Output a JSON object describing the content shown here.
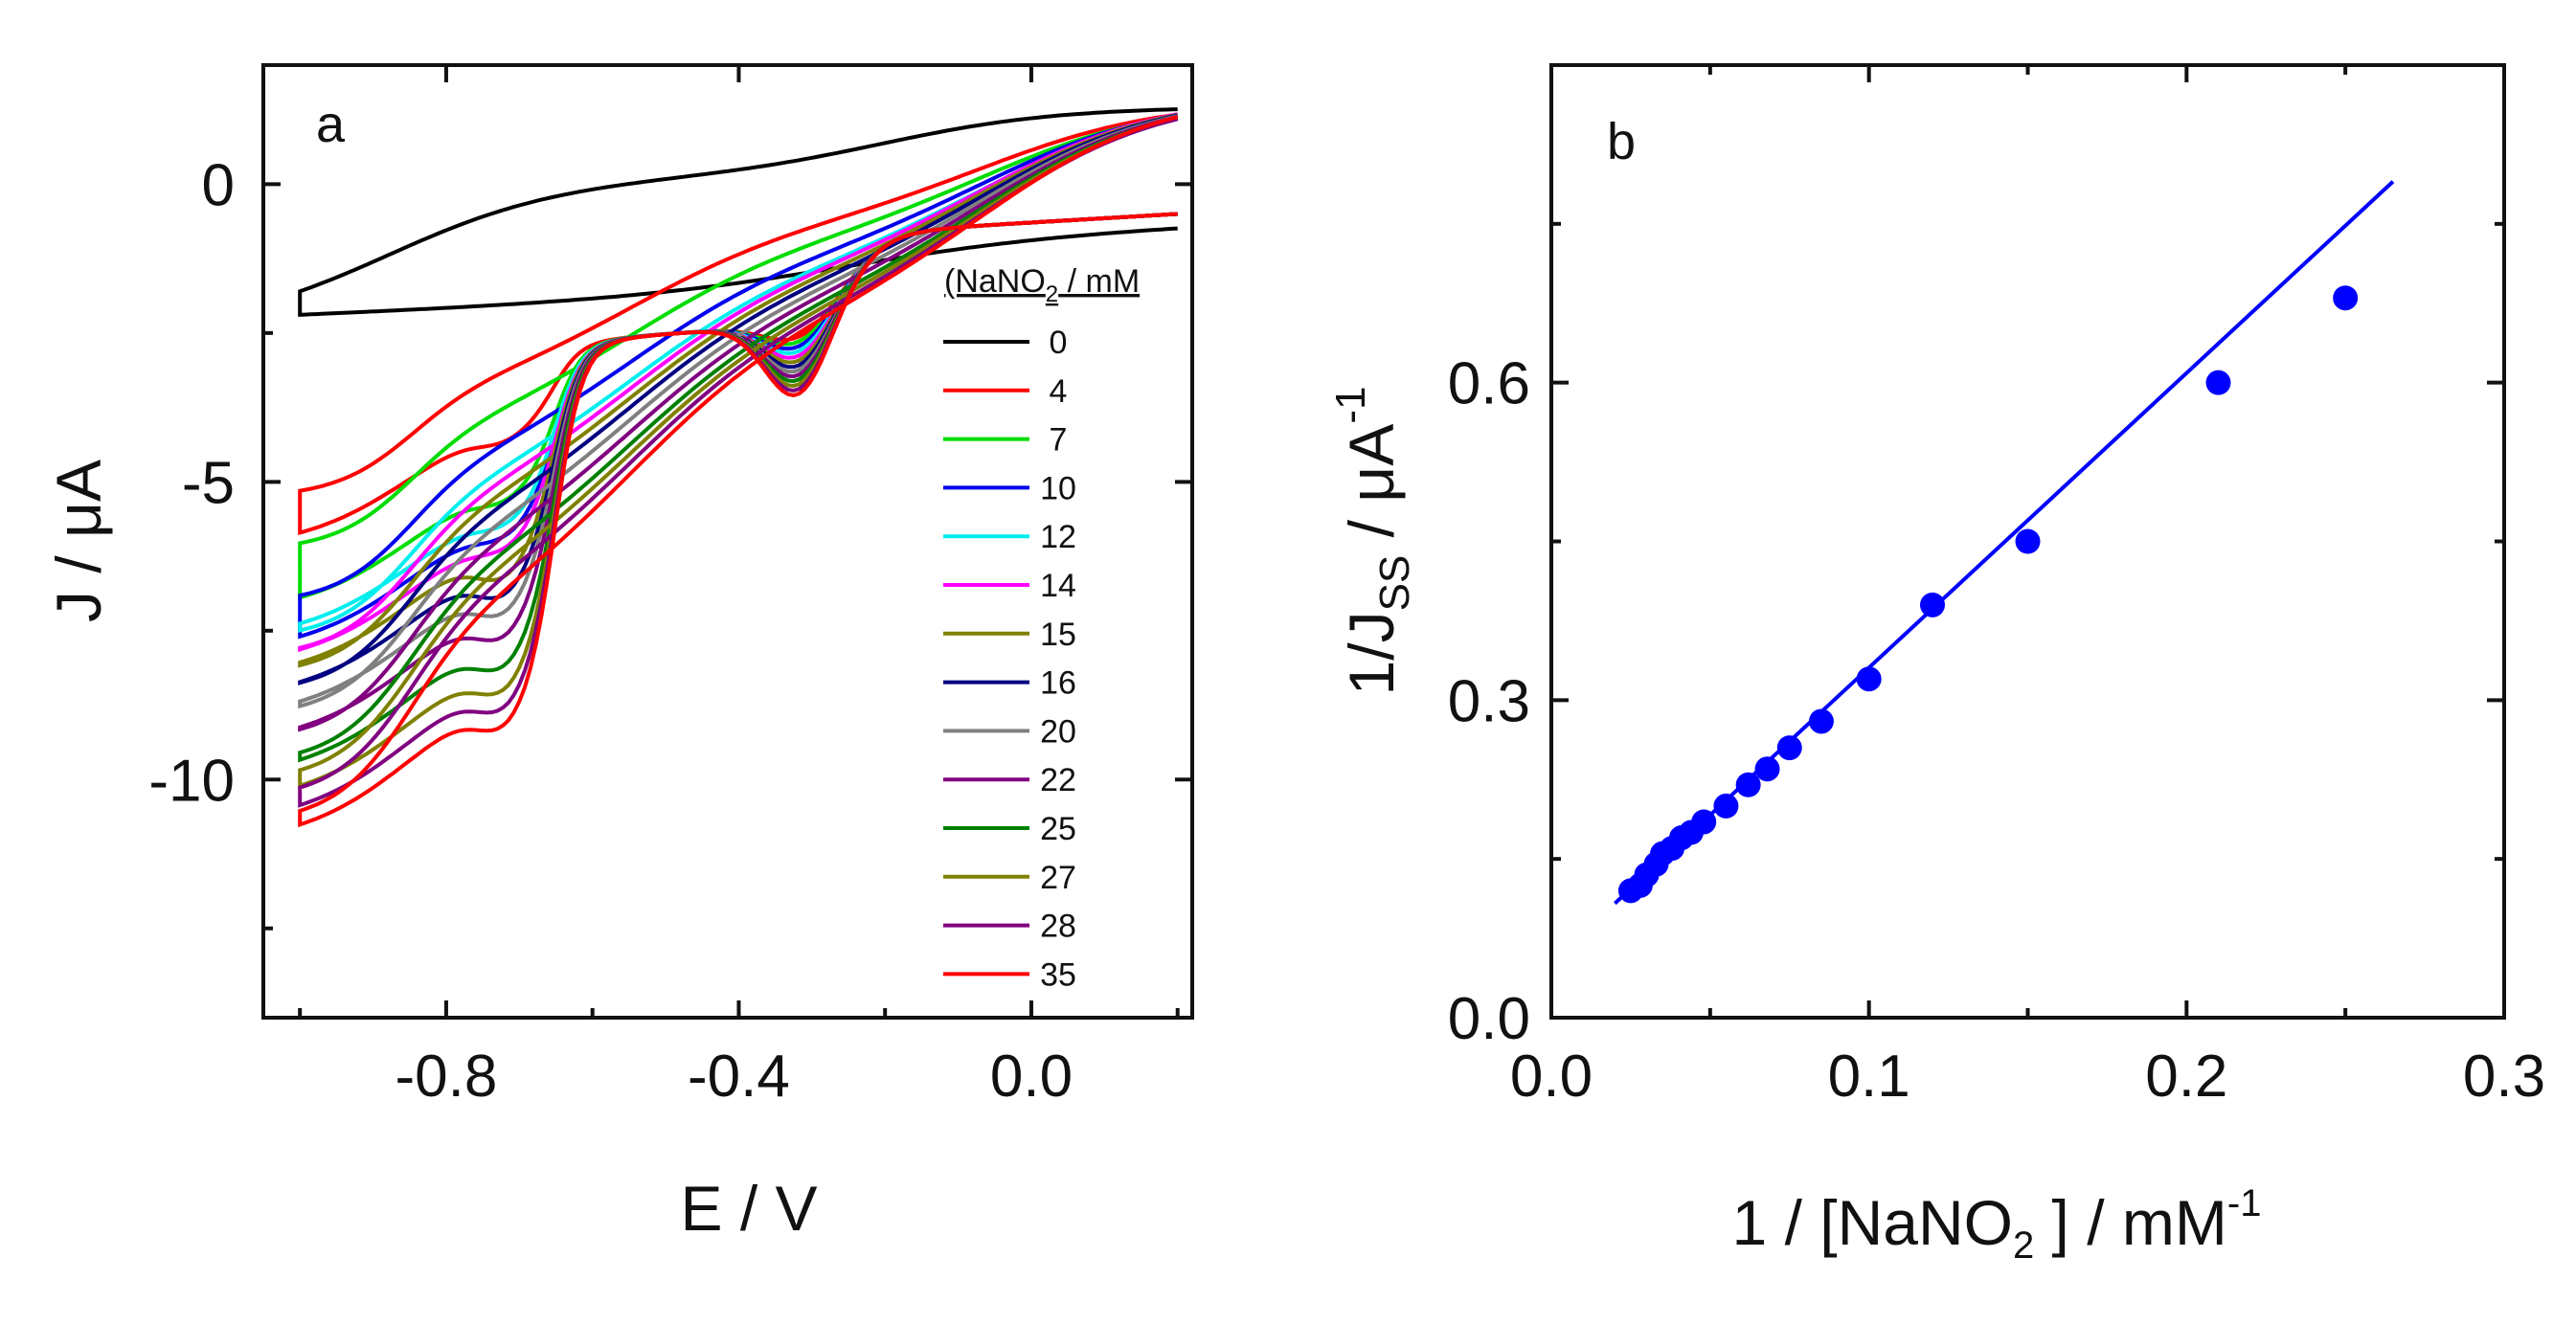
{
  "chart_data": [
    {
      "panel": "a",
      "type": "line",
      "title": "",
      "xlabel": "E / V",
      "ylabel": "J / μA",
      "xlim": [
        -1.05,
        0.22
      ],
      "ylim": [
        -14,
        2.0
      ],
      "xticks": [
        -0.8,
        -0.4,
        0.0
      ],
      "xtick_labels": [
        "-0.8",
        "-0.4",
        "0.0"
      ],
      "yticks": [
        0,
        -5,
        -10
      ],
      "ytick_labels": [
        "0",
        "-5",
        "-10"
      ],
      "legend_title_main": "(NaNO",
      "legend_title_sub": "2",
      "legend_title_rest": " / mM",
      "legend_position": "right",
      "series": [
        {
          "name": "0",
          "color": "#000000",
          "limit": 0.0,
          "wave1": 0.0,
          "anodic": 1.3,
          "start": -2.5
        },
        {
          "name": "4",
          "color": "#ff0000",
          "limit": -4.0,
          "wave1": -1.0,
          "anodic": 1.4,
          "start": -5.3
        },
        {
          "name": "7",
          "color": "#00dd00",
          "limit": -5.0,
          "wave1": -0.8,
          "anodic": 1.4,
          "start": -6.2
        },
        {
          "name": "10",
          "color": "#0000ee",
          "limit": -5.6,
          "wave1": -0.6,
          "anodic": 1.45,
          "start": -7.1
        },
        {
          "name": "12",
          "color": "#00eeee",
          "limit": -5.4,
          "wave1": -0.5,
          "anodic": 1.45,
          "start": -7.7
        },
        {
          "name": "14",
          "color": "#ff00ff",
          "limit": -5.8,
          "wave1": -0.4,
          "anodic": 1.5,
          "start": -8.0
        },
        {
          "name": "15",
          "color": "#808000",
          "limit": -6.0,
          "wave1": -0.4,
          "anodic": 1.5,
          "start": -8.3
        },
        {
          "name": "16",
          "color": "#000080",
          "limit": -6.3,
          "wave1": -0.3,
          "anodic": 1.5,
          "start": -8.6
        },
        {
          "name": "20",
          "color": "#808080",
          "limit": -6.6,
          "wave1": -0.2,
          "anodic": 1.5,
          "start": -9.0
        },
        {
          "name": "22",
          "color": "#800080",
          "limit": -7.0,
          "wave1": -0.1,
          "anodic": 1.5,
          "start": -9.4
        },
        {
          "name": "25",
          "color": "#008000",
          "limit": -7.5,
          "wave1": -0.05,
          "anodic": 1.5,
          "start": -9.8
        },
        {
          "name": "27",
          "color": "#808000",
          "limit": -7.9,
          "wave1": 0.0,
          "anodic": 1.5,
          "start": -10.1
        },
        {
          "name": "28",
          "color": "#800080",
          "limit": -8.2,
          "wave1": 0.05,
          "anodic": 1.5,
          "start": -10.4
        },
        {
          "name": "35",
          "color": "#ff0000",
          "limit": -8.5,
          "wave1": 0.1,
          "anodic": 1.55,
          "start": -10.8
        }
      ]
    },
    {
      "panel": "b",
      "type": "scatter",
      "title": "",
      "xlabel_main": "1 / [NaNO",
      "xlabel_sub": "2",
      "xlabel_rest": " ] / mM",
      "xlabel_sup": "-1",
      "ylabel_main": "1/J",
      "ylabel_sub": "SS",
      "ylabel_rest": " / μA",
      "ylabel_sup": "-1",
      "xlim": [
        0.0,
        0.3
      ],
      "ylim": [
        0.0,
        0.9
      ],
      "xticks": [
        0.0,
        0.1,
        0.2,
        0.3
      ],
      "xtick_labels": [
        "0.0",
        "0.1",
        "0.2",
        "0.3"
      ],
      "yticks": [
        0.0,
        0.3,
        0.6
      ],
      "ytick_labels": [
        "0.0",
        "0.3",
        "0.6"
      ],
      "color": "#0000ff",
      "x": [
        0.0286,
        0.0357,
        0.037,
        0.04,
        0.0455,
        0.05,
        0.0625,
        0.0667,
        0.0714,
        0.0833,
        0.1,
        0.1429,
        0.25,
        0.143,
        0.083,
        0.0526,
        0.0588,
        0.0435,
        0.0345,
        0.0303
      ],
      "x_note": "raw",
      "points": [
        [
          0.025,
          0.12
        ],
        [
          0.028,
          0.125
        ],
        [
          0.03,
          0.135
        ],
        [
          0.033,
          0.145
        ],
        [
          0.035,
          0.155
        ],
        [
          0.038,
          0.16
        ],
        [
          0.041,
          0.17
        ],
        [
          0.044,
          0.175
        ],
        [
          0.048,
          0.185
        ],
        [
          0.055,
          0.2
        ],
        [
          0.062,
          0.22
        ],
        [
          0.068,
          0.235
        ],
        [
          0.075,
          0.255
        ],
        [
          0.085,
          0.28
        ],
        [
          0.1,
          0.32
        ],
        [
          0.12,
          0.39
        ],
        [
          0.15,
          0.45
        ],
        [
          0.21,
          0.6
        ],
        [
          0.25,
          0.68
        ]
      ],
      "fit_line": {
        "x": [
          0.02,
          0.265
        ],
        "y": [
          0.108,
          0.79
        ]
      }
    }
  ],
  "labels": {
    "panel_a": "a",
    "panel_b": "b"
  }
}
